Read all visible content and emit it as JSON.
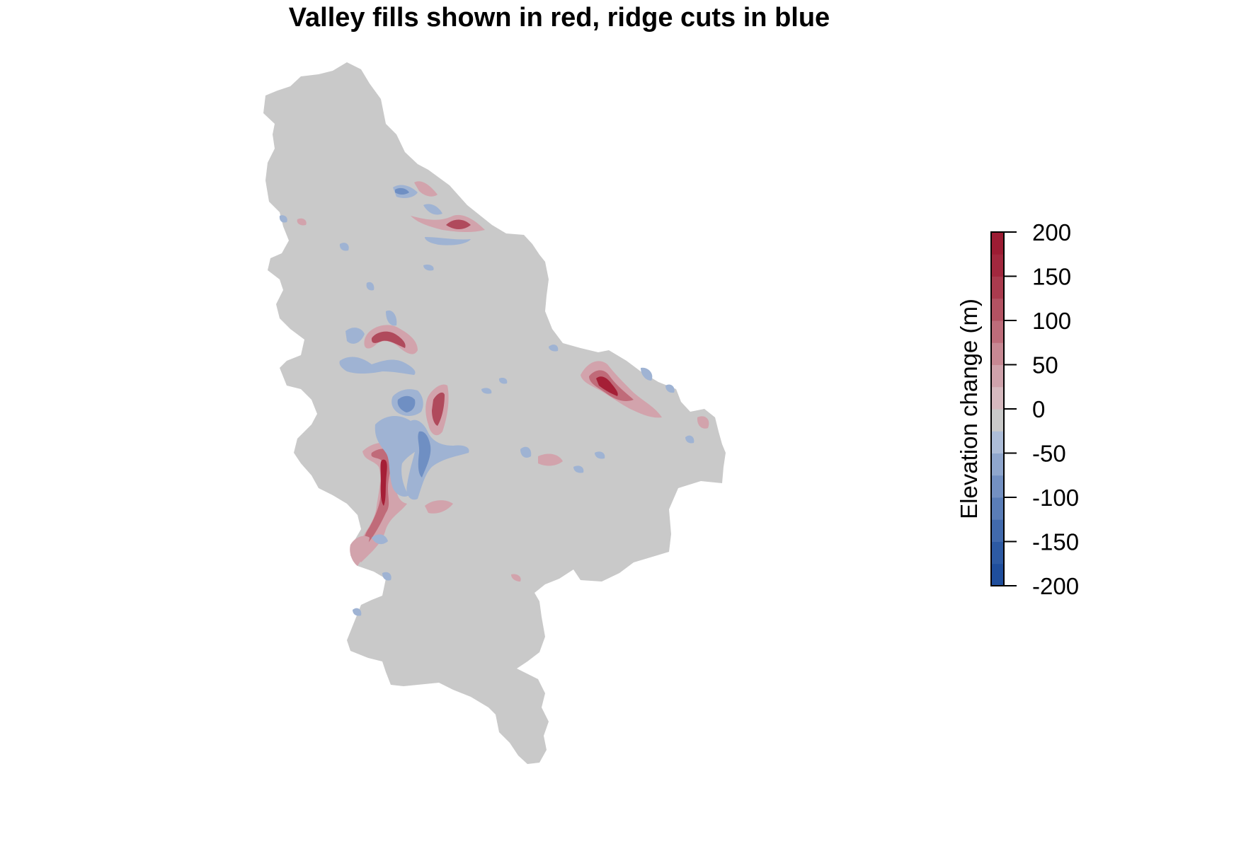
{
  "title": "Valley fills shown in red, ridge cuts in blue",
  "legend": {
    "title": "Elevation change (m)",
    "ticks": [
      "200",
      "150",
      "100",
      "50",
      "0",
      "-50",
      "-100",
      "-150",
      "-200"
    ],
    "range": [
      -200,
      200
    ],
    "colors": [
      "#1f4e9c",
      "#2d5aa3",
      "#416aad",
      "#5a7db7",
      "#7390c2",
      "#8fa6cd",
      "#adbdd8",
      "#c9c9c9",
      "#d6b9bf",
      "#cfa2ab",
      "#c78893",
      "#be6c7a",
      "#b35262",
      "#aa3b4e",
      "#a2283e",
      "#9c1c33"
    ]
  },
  "colors": {
    "background": "#c9c9c9",
    "fill_light": "#d2a3ac",
    "fill_mid": "#c06b79",
    "fill_dark": "#a51f36",
    "cut_light": "#9fb3d3",
    "cut_mid": "#6f8fc3",
    "cut_dark": "#3f68aa"
  }
}
